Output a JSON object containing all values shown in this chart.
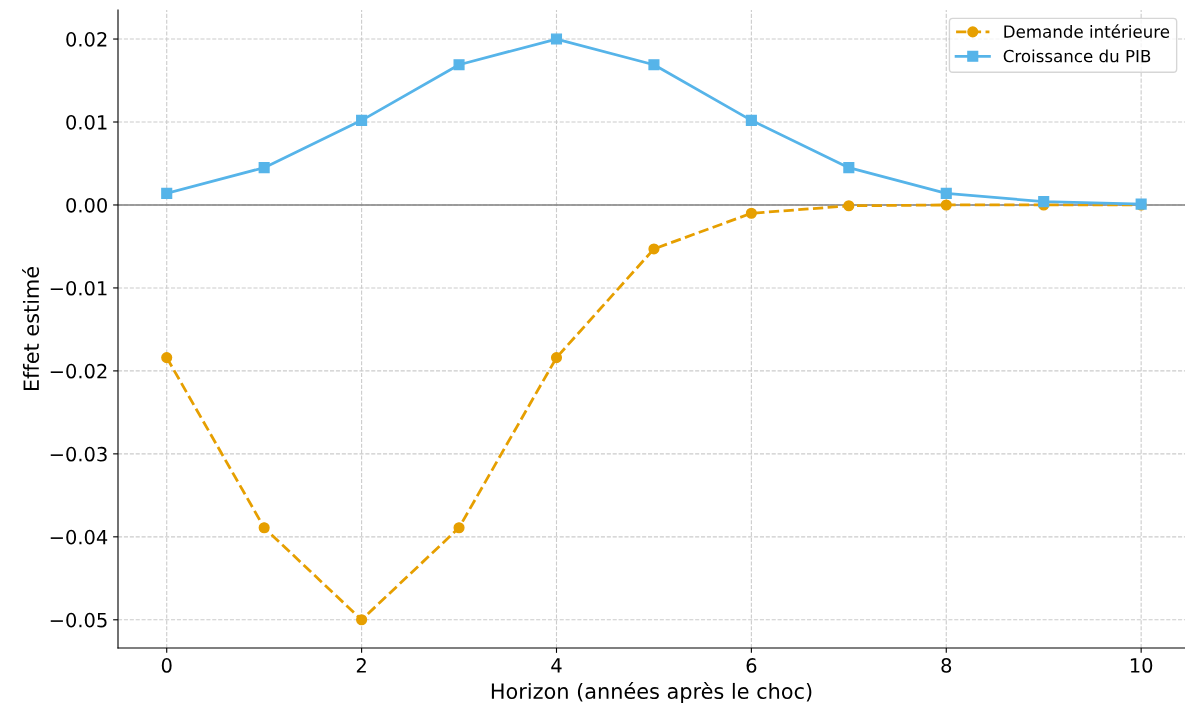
{
  "chart_data": {
    "type": "line",
    "xlabel": "Horizon (années après le choc)",
    "ylabel": "Effet estimé",
    "x": [
      0,
      1,
      2,
      3,
      4,
      5,
      6,
      7,
      8,
      9,
      10
    ],
    "series": [
      {
        "name": "Demande intérieure",
        "color": "#e69f00",
        "values": [
          -0.0184,
          -0.0389,
          -0.05,
          -0.0389,
          -0.0184,
          -0.0053,
          -0.001,
          -0.0001,
          0.0,
          0.0,
          0.0
        ],
        "marker": "circle",
        "line_style": "dashed"
      },
      {
        "name": "Croissance du PIB",
        "color": "#56b4e9",
        "values": [
          0.0014,
          0.0045,
          0.0102,
          0.0169,
          0.02,
          0.0169,
          0.0102,
          0.0045,
          0.0014,
          0.0004,
          0.0001
        ],
        "marker": "square",
        "line_style": "solid"
      }
    ],
    "xlim": [
      -0.5,
      10.45
    ],
    "xticks": [
      0,
      2,
      4,
      6,
      8,
      10
    ],
    "ylim": [
      -0.0534,
      0.0235
    ],
    "yticks": [
      {
        "value": -0.05,
        "label": "−0.05"
      },
      {
        "value": -0.04,
        "label": "−0.04"
      },
      {
        "value": -0.03,
        "label": "−0.03"
      },
      {
        "value": -0.02,
        "label": "−0.02"
      },
      {
        "value": -0.01,
        "label": "−0.01"
      },
      {
        "value": 0,
        "label": "0.00"
      },
      {
        "value": 0.01,
        "label": "0.01"
      },
      {
        "value": 0.02,
        "label": "0.02"
      }
    ],
    "ref_lines": [
      {
        "axis": "y",
        "value": 0,
        "color": "#808080",
        "line_style": "solid"
      }
    ],
    "grid": true,
    "legend": "top right"
  }
}
